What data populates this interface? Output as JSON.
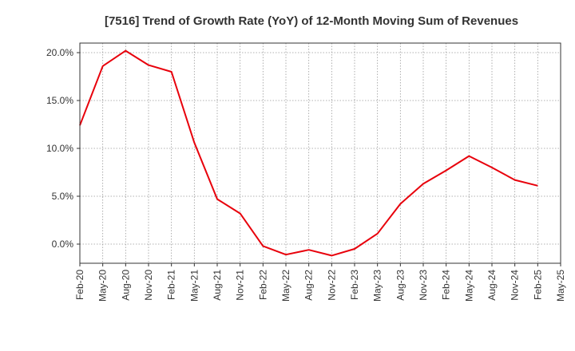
{
  "chart_data": {
    "type": "line",
    "title": "[7516]  Trend of Growth Rate (YoY) of 12-Month Moving Sum of Revenues",
    "xlabel": "",
    "ylabel": "",
    "x_ticks": [
      "Feb-20",
      "May-20",
      "Aug-20",
      "Nov-20",
      "Feb-21",
      "May-21",
      "Aug-21",
      "Nov-21",
      "Feb-22",
      "May-22",
      "Aug-22",
      "Nov-22",
      "Feb-23",
      "May-23",
      "Aug-23",
      "Nov-23",
      "Feb-24",
      "May-24",
      "Aug-24",
      "Nov-24",
      "Feb-25",
      "May-25"
    ],
    "y_ticks": [
      0,
      5,
      10,
      15,
      20
    ],
    "y_tick_labels": [
      "0.0%",
      "5.0%",
      "10.0%",
      "15.0%",
      "20.0%"
    ],
    "ylim": [
      -2,
      21
    ],
    "grid": true,
    "line_color": "#e8000b",
    "series": [
      {
        "values": [
          12.4,
          18.6,
          20.2,
          18.7,
          18.0,
          10.6,
          4.7,
          3.2,
          -0.2,
          -1.1,
          -0.6,
          -1.2,
          -0.5,
          1.1,
          4.2,
          6.3,
          7.7,
          9.2,
          8.0,
          6.7,
          6.1
        ]
      }
    ]
  }
}
